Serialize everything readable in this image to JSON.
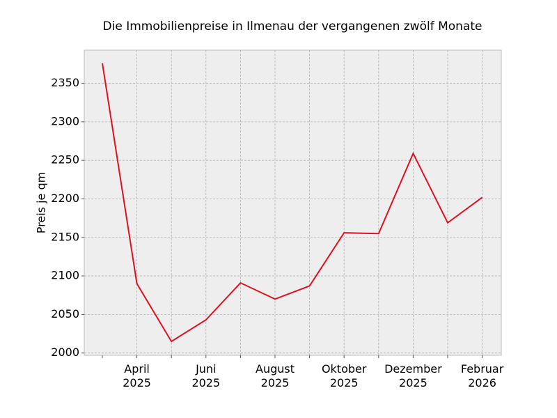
{
  "chart_data": {
    "type": "line",
    "title": "Die Immobilienpreise in Ilmenau der vergangenen zwölf Monate",
    "y_label": "Preis je qm",
    "categories": [
      null,
      "April\n2025",
      null,
      "Juni\n2025",
      null,
      "August\n2025",
      null,
      "Oktober\n2025",
      null,
      "Dezember\n2025",
      null,
      "Februar\n2026"
    ],
    "series": [
      {
        "name": "Preis je qm",
        "color": "#e0101e",
        "values": [
          2376,
          2090,
          2015,
          2043,
          2091,
          2070,
          2087,
          2156,
          2155,
          2259,
          2169,
          2202
        ]
      }
    ],
    "ylim": [
      1997,
      2393
    ],
    "yticks": [
      2000,
      2050,
      2100,
      2150,
      2200,
      2250,
      2300,
      2350
    ],
    "grid": true
  }
}
